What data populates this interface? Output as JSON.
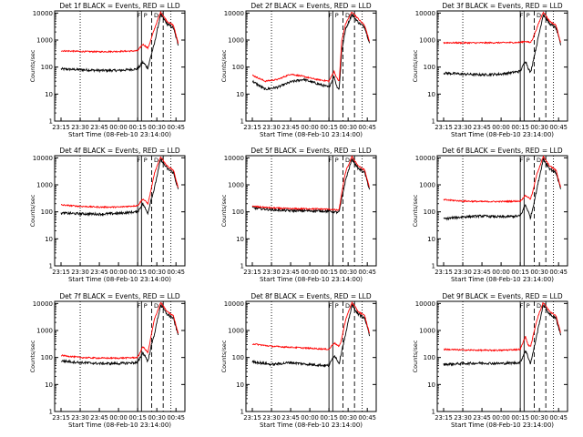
{
  "figure": {
    "colors": {
      "events": "#000000",
      "lld": "#ff0000",
      "axis": "#000000",
      "background": "#ffffff"
    }
  },
  "chart_data": [
    {
      "type": "line",
      "title": "Det 1f BLACK = Events, RED = LLD",
      "xlabel": "Start Time (08-Feb-10 23:14:00)",
      "ylabel": "Counts/sec",
      "x_ticks": [
        "23:15",
        "23:30",
        "23:45",
        "00:00",
        "00:15",
        "00:30",
        "00:45"
      ],
      "y_ticks": [
        "1",
        "10",
        "100",
        "1000",
        "10000"
      ],
      "ylim": [
        1,
        12000
      ],
      "y_scale": "log",
      "grid": false,
      "markers": [
        "F",
        "P",
        "D",
        "E"
      ],
      "series": [
        {
          "x": [
            "23:15",
            "23:30",
            "23:45",
            "00:00",
            "00:15",
            "00:19",
            "00:21",
            "00:23",
            "00:25",
            "00:28",
            "00:33",
            "00:38",
            "00:43",
            "00:47"
          ],
          "values": [
            85,
            80,
            75,
            75,
            85,
            150,
            120,
            90,
            220,
            700,
            9000,
            4000,
            2800,
            600
          ]
        },
        {
          "x": [
            "23:15",
            "23:30",
            "23:45",
            "00:00",
            "00:15",
            "00:19",
            "00:21",
            "00:23",
            "00:25",
            "00:28",
            "00:33",
            "00:38",
            "00:43",
            "00:47"
          ],
          "values": [
            400,
            380,
            370,
            380,
            400,
            700,
            600,
            500,
            900,
            2500,
            11000,
            5000,
            3500,
            700
          ]
        }
      ]
    },
    {
      "type": "line",
      "title": "Det 2f BLACK = Events, RED = LLD",
      "xlabel": "Start Time (08-Feb-10 23:14:00)",
      "ylabel": "Counts/sec",
      "x_ticks": [
        "23:15",
        "23:30",
        "23:45",
        "00:00",
        "00:15",
        "00:30",
        "00:45"
      ],
      "y_ticks": [
        "1",
        "10",
        "100",
        "1000",
        "10000"
      ],
      "ylim": [
        1,
        12000
      ],
      "y_scale": "log",
      "grid": false,
      "markers": [
        "F",
        "P",
        "D",
        "E"
      ],
      "series": [
        {
          "x": [
            "23:15",
            "23:25",
            "23:35",
            "23:45",
            "23:55",
            "00:05",
            "00:15",
            "00:19",
            "00:21",
            "00:23",
            "00:25",
            "00:28",
            "00:33",
            "00:38",
            "00:43",
            "00:47"
          ],
          "values": [
            30,
            15,
            18,
            28,
            35,
            25,
            18,
            45,
            20,
            15,
            400,
            2500,
            9000,
            4500,
            3000,
            700
          ]
        },
        {
          "x": [
            "23:15",
            "23:25",
            "23:35",
            "23:45",
            "23:55",
            "00:05",
            "00:15",
            "00:19",
            "00:21",
            "00:23",
            "00:25",
            "00:28",
            "00:33",
            "00:38",
            "00:43",
            "00:47"
          ],
          "values": [
            50,
            30,
            35,
            55,
            45,
            35,
            30,
            70,
            40,
            30,
            900,
            4000,
            11000,
            6000,
            3500,
            800
          ]
        }
      ]
    },
    {
      "type": "line",
      "title": "Det 3f BLACK = Events, RED = LLD",
      "xlabel": "Start Time (08-Feb-10 23:14:00)",
      "ylabel": "Counts/sec",
      "x_ticks": [
        "23:15",
        "23:30",
        "23:45",
        "00:00",
        "00:15",
        "00:30",
        "00:45"
      ],
      "y_ticks": [
        "1",
        "10",
        "100",
        "1000",
        "10000"
      ],
      "ylim": [
        1,
        12000
      ],
      "y_scale": "log",
      "grid": false,
      "markers": [
        "F",
        "P",
        "D",
        "E"
      ],
      "series": [
        {
          "x": [
            "23:15",
            "23:30",
            "23:45",
            "00:00",
            "00:15",
            "00:19",
            "00:21",
            "00:23",
            "00:25",
            "00:28",
            "00:33",
            "00:38",
            "00:43",
            "00:47"
          ],
          "values": [
            60,
            55,
            52,
            55,
            70,
            170,
            100,
            60,
            160,
            700,
            9000,
            4000,
            2800,
            600
          ]
        },
        {
          "x": [
            "23:15",
            "23:30",
            "23:45",
            "00:00",
            "00:15",
            "00:19",
            "00:21",
            "00:23",
            "00:25",
            "00:28",
            "00:33",
            "00:38",
            "00:43",
            "00:47"
          ],
          "values": [
            800,
            790,
            790,
            800,
            820,
            900,
            850,
            800,
            1200,
            2800,
            11000,
            5000,
            3500,
            700
          ]
        }
      ]
    },
    {
      "type": "line",
      "title": "Det 4f BLACK = Events, RED = LLD",
      "xlabel": "Start Time (08-Feb-10 23:14:00)",
      "ylabel": "Counts/sec",
      "x_ticks": [
        "23:15",
        "23:30",
        "23:45",
        "00:00",
        "00:15",
        "00:30",
        "00:45"
      ],
      "y_ticks": [
        "1",
        "10",
        "100",
        "1000",
        "10000"
      ],
      "ylim": [
        1,
        12000
      ],
      "y_scale": "log",
      "grid": false,
      "markers": [
        "F",
        "P",
        "D",
        "E"
      ],
      "series": [
        {
          "x": [
            "23:15",
            "23:30",
            "23:45",
            "00:00",
            "00:15",
            "00:19",
            "00:21",
            "00:23",
            "00:25",
            "00:28",
            "00:33",
            "00:38",
            "00:43",
            "00:47"
          ],
          "values": [
            90,
            85,
            82,
            88,
            100,
            200,
            130,
            90,
            230,
            700,
            9000,
            4000,
            2800,
            600
          ]
        },
        {
          "x": [
            "23:15",
            "23:30",
            "23:45",
            "00:00",
            "00:15",
            "00:19",
            "00:21",
            "00:23",
            "00:25",
            "00:28",
            "00:33",
            "00:38",
            "00:43",
            "00:47"
          ],
          "values": [
            180,
            160,
            150,
            150,
            170,
            300,
            250,
            200,
            500,
            2500,
            11000,
            5000,
            3500,
            700
          ]
        }
      ]
    },
    {
      "type": "line",
      "title": "Det 5f BLACK = Events, RED = LLD",
      "xlabel": "Start Time (08-Feb-10 23:14:00)",
      "ylabel": "Counts/sec",
      "x_ticks": [
        "23:15",
        "23:30",
        "23:45",
        "00:00",
        "00:15",
        "00:30",
        "00:45"
      ],
      "y_ticks": [
        "1",
        "10",
        "100",
        "1000",
        "10000"
      ],
      "ylim": [
        1,
        12000
      ],
      "y_scale": "log",
      "grid": false,
      "markers": [
        "F",
        "P",
        "D",
        "E"
      ],
      "series": [
        {
          "x": [
            "23:15",
            "23:30",
            "23:45",
            "00:00",
            "00:15",
            "00:19",
            "00:21",
            "00:23",
            "00:25",
            "00:28",
            "00:33",
            "00:38",
            "00:43",
            "00:47"
          ],
          "values": [
            140,
            120,
            110,
            110,
            105,
            100,
            95,
            100,
            300,
            1500,
            9000,
            4000,
            2800,
            600
          ]
        },
        {
          "x": [
            "23:15",
            "23:30",
            "23:45",
            "00:00",
            "00:15",
            "00:19",
            "00:21",
            "00:23",
            "00:25",
            "00:28",
            "00:33",
            "00:38",
            "00:43",
            "00:47"
          ],
          "values": [
            160,
            140,
            130,
            130,
            125,
            120,
            115,
            120,
            500,
            3000,
            11000,
            5000,
            3500,
            700
          ]
        }
      ]
    },
    {
      "type": "line",
      "title": "Det 6f BLACK = Events, RED = LLD",
      "xlabel": "Start Time (08-Feb-10 23:14:00)",
      "ylabel": "Counts/sec",
      "x_ticks": [
        "23:15",
        "23:30",
        "23:45",
        "00:00",
        "00:15",
        "00:30",
        "00:45"
      ],
      "y_ticks": [
        "1",
        "10",
        "100",
        "1000",
        "10000"
      ],
      "ylim": [
        1,
        12000
      ],
      "y_scale": "log",
      "grid": false,
      "markers": [
        "F",
        "P",
        "D",
        "E"
      ],
      "series": [
        {
          "x": [
            "23:15",
            "23:30",
            "23:45",
            "00:00",
            "00:15",
            "00:19",
            "00:21",
            "00:23",
            "00:25",
            "00:28",
            "00:33",
            "00:38",
            "00:43",
            "00:47"
          ],
          "values": [
            55,
            65,
            70,
            65,
            70,
            180,
            110,
            60,
            150,
            700,
            9000,
            4000,
            2800,
            600
          ]
        },
        {
          "x": [
            "23:15",
            "23:30",
            "23:45",
            "00:00",
            "00:15",
            "00:19",
            "00:21",
            "00:23",
            "00:25",
            "00:28",
            "00:33",
            "00:38",
            "00:43",
            "00:47"
          ],
          "values": [
            280,
            250,
            240,
            240,
            250,
            400,
            350,
            300,
            600,
            2500,
            11000,
            5000,
            3500,
            700
          ]
        }
      ]
    },
    {
      "type": "line",
      "title": "Det 7f BLACK = Events, RED = LLD",
      "xlabel": "Start Time (08-Feb-10 23:14:00)",
      "ylabel": "Counts/sec",
      "x_ticks": [
        "23:15",
        "23:30",
        "23:45",
        "00:00",
        "00:15",
        "00:30",
        "00:45"
      ],
      "y_ticks": [
        "1",
        "10",
        "100",
        "1000",
        "10000"
      ],
      "ylim": [
        1,
        12000
      ],
      "y_scale": "log",
      "grid": false,
      "markers": [
        "F",
        "P",
        "D",
        "E"
      ],
      "series": [
        {
          "x": [
            "23:15",
            "23:30",
            "23:45",
            "00:00",
            "00:15",
            "00:19",
            "00:21",
            "00:23",
            "00:25",
            "00:28",
            "00:33",
            "00:38",
            "00:43",
            "00:47"
          ],
          "values": [
            75,
            65,
            60,
            60,
            65,
            150,
            110,
            70,
            200,
            700,
            9000,
            4000,
            2800,
            600
          ]
        },
        {
          "x": [
            "23:15",
            "23:30",
            "23:45",
            "00:00",
            "00:15",
            "00:19",
            "00:21",
            "00:23",
            "00:25",
            "00:28",
            "00:33",
            "00:38",
            "00:43",
            "00:47"
          ],
          "values": [
            120,
            100,
            95,
            95,
            100,
            250,
            200,
            150,
            450,
            2500,
            11000,
            5000,
            3500,
            700
          ]
        }
      ]
    },
    {
      "type": "line",
      "title": "Det 8f BLACK = Events, RED = LLD",
      "xlabel": "Start Time (08-Feb-10 23:14:00)",
      "ylabel": "Counts/sec",
      "x_ticks": [
        "23:15",
        "23:30",
        "23:45",
        "00:00",
        "00:15",
        "00:30",
        "00:45"
      ],
      "y_ticks": [
        "1",
        "10",
        "100",
        "1000",
        "10000"
      ],
      "ylim": [
        1,
        12000
      ],
      "y_scale": "log",
      "grid": false,
      "markers": [
        "F",
        "P",
        "D",
        "E"
      ],
      "series": [
        {
          "x": [
            "23:15",
            "23:30",
            "23:45",
            "00:00",
            "00:15",
            "00:19",
            "00:21",
            "00:23",
            "00:25",
            "00:28",
            "00:33",
            "00:38",
            "00:43",
            "00:47"
          ],
          "values": [
            70,
            55,
            65,
            55,
            50,
            120,
            90,
            60,
            180,
            700,
            9000,
            4000,
            2800,
            600
          ]
        },
        {
          "x": [
            "23:15",
            "23:30",
            "23:45",
            "00:00",
            "00:15",
            "00:19",
            "00:21",
            "00:23",
            "00:25",
            "00:28",
            "00:33",
            "00:38",
            "00:43",
            "00:47"
          ],
          "values": [
            320,
            260,
            240,
            220,
            200,
            350,
            300,
            250,
            500,
            2500,
            11000,
            5000,
            3500,
            700
          ]
        }
      ]
    },
    {
      "type": "line",
      "title": "Det 9f BLACK = Events, RED = LLD",
      "xlabel": "Start Time (08-Feb-10 23:14:00)",
      "ylabel": "Counts/sec",
      "x_ticks": [
        "23:15",
        "23:30",
        "23:45",
        "00:00",
        "00:15",
        "00:30",
        "00:45"
      ],
      "y_ticks": [
        "1",
        "10",
        "100",
        "1000",
        "10000"
      ],
      "ylim": [
        1,
        12000
      ],
      "y_scale": "log",
      "grid": false,
      "markers": [
        "F",
        "P",
        "D",
        "E"
      ],
      "series": [
        {
          "x": [
            "23:15",
            "23:30",
            "23:45",
            "00:00",
            "00:15",
            "00:19",
            "00:21",
            "00:23",
            "00:25",
            "00:28",
            "00:33",
            "00:38",
            "00:43",
            "00:47"
          ],
          "values": [
            55,
            60,
            62,
            60,
            65,
            180,
            110,
            60,
            150,
            700,
            9000,
            4000,
            2800,
            600
          ]
        },
        {
          "x": [
            "23:15",
            "23:30",
            "23:45",
            "00:00",
            "00:15",
            "00:19",
            "00:21",
            "00:23",
            "00:25",
            "00:28",
            "00:33",
            "00:38",
            "00:43",
            "00:47"
          ],
          "values": [
            200,
            190,
            185,
            185,
            200,
            600,
            300,
            250,
            600,
            2500,
            11000,
            5000,
            3500,
            700
          ]
        }
      ]
    }
  ]
}
